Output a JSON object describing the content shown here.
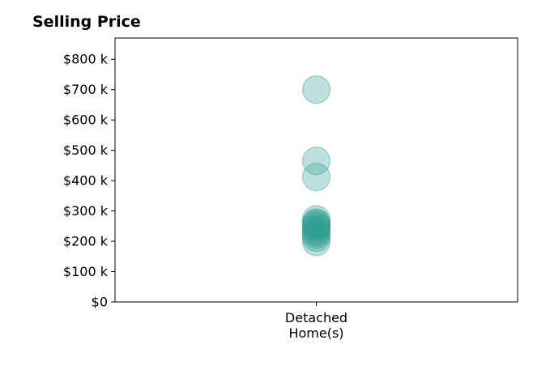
{
  "chart_data": {
    "type": "scatter",
    "title": "Selling Price",
    "xlabel": "",
    "ylabel": "",
    "categories": [
      "Detached|Home(s)"
    ],
    "y_ticks": [
      {
        "value": 0,
        "label": "$0"
      },
      {
        "value": 100,
        "label": "$100 k"
      },
      {
        "value": 200,
        "label": "$200 k"
      },
      {
        "value": 300,
        "label": "$300 k"
      },
      {
        "value": 400,
        "label": "$400 k"
      },
      {
        "value": 500,
        "label": "$500 k"
      },
      {
        "value": 600,
        "label": "$600 k"
      },
      {
        "value": 700,
        "label": "$700 k"
      },
      {
        "value": 800,
        "label": "$800 k"
      }
    ],
    "ylim": [
      0,
      870
    ],
    "grid": false,
    "point_color": "#2a9d8f",
    "series": [
      {
        "category_index": 0,
        "values": [
          700,
          465,
          412,
          272,
          262,
          258,
          252,
          246,
          238,
          230,
          222,
          212,
          198
        ]
      }
    ]
  }
}
